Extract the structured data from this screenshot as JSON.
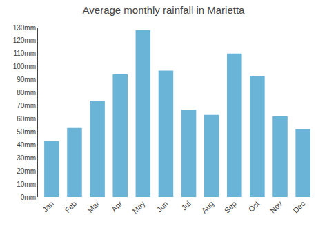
{
  "chart_data": {
    "type": "bar",
    "title": "Average monthly rainfall in Marietta",
    "categories": [
      "Jan",
      "Feb",
      "Mar",
      "Apr",
      "May",
      "Jun",
      "Jul",
      "Aug",
      "Sep",
      "Oct",
      "Nov",
      "Dec"
    ],
    "values": [
      43,
      53,
      74,
      94,
      128,
      97,
      67,
      63,
      110,
      93,
      62,
      52
    ],
    "color": "#6ab4d8",
    "ylim": [
      0,
      130
    ],
    "yticks": [
      {
        "value": 0,
        "label": "0mm"
      },
      {
        "value": 10,
        "label": "10mm"
      },
      {
        "value": 20,
        "label": "20mm"
      },
      {
        "value": 30,
        "label": "30mm"
      },
      {
        "value": 40,
        "label": "40mm"
      },
      {
        "value": 50,
        "label": "50mm"
      },
      {
        "value": 60,
        "label": "60mm"
      },
      {
        "value": 70,
        "label": "70mm"
      },
      {
        "value": 80,
        "label": "80mm"
      },
      {
        "value": 90,
        "label": "90mm"
      },
      {
        "value": 100,
        "label": "100mm"
      },
      {
        "value": 110,
        "label": "110mm"
      },
      {
        "value": 120,
        "label": "120mm"
      },
      {
        "value": 130,
        "label": "130mm"
      }
    ],
    "grid": false
  }
}
